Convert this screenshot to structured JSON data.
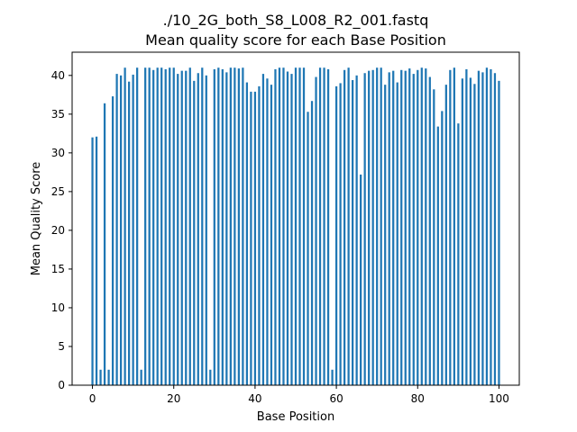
{
  "chart_data": {
    "type": "bar",
    "title_lines": [
      "./10_2G_both_S8_L008_R2_001.fastq",
      "Mean quality score for each Base Position"
    ],
    "xlabel": "Base Position",
    "ylabel": "Mean Quality Score",
    "xlim": [
      -5,
      105
    ],
    "ylim": [
      0,
      43
    ],
    "xticks": [
      0,
      20,
      40,
      60,
      80,
      100
    ],
    "yticks": [
      0,
      5,
      10,
      15,
      20,
      25,
      30,
      35,
      40
    ],
    "grid": false,
    "bar_color": "#1f77b4",
    "x": [
      0,
      1,
      2,
      3,
      4,
      5,
      6,
      7,
      8,
      9,
      10,
      11,
      12,
      13,
      14,
      15,
      16,
      17,
      18,
      19,
      20,
      21,
      22,
      23,
      24,
      25,
      26,
      27,
      28,
      29,
      30,
      31,
      32,
      33,
      34,
      35,
      36,
      37,
      38,
      39,
      40,
      41,
      42,
      43,
      44,
      45,
      46,
      47,
      48,
      49,
      50,
      51,
      52,
      53,
      54,
      55,
      56,
      57,
      58,
      59,
      60,
      61,
      62,
      63,
      64,
      65,
      66,
      67,
      68,
      69,
      70,
      71,
      72,
      73,
      74,
      75,
      76,
      77,
      78,
      79,
      80,
      81,
      82,
      83,
      84,
      85,
      86,
      87,
      88,
      89,
      90,
      91,
      92,
      93,
      94,
      95,
      96,
      97,
      98,
      99,
      100
    ],
    "values": [
      32.0,
      32.1,
      2.0,
      36.4,
      2.0,
      37.3,
      40.2,
      40.0,
      41.0,
      39.2,
      40.1,
      41.0,
      2.0,
      41.0,
      41.0,
      40.7,
      41.0,
      41.0,
      40.8,
      41.0,
      41.0,
      40.2,
      40.6,
      40.6,
      41.0,
      39.3,
      40.3,
      41.0,
      40.0,
      2.0,
      40.8,
      41.0,
      40.8,
      40.4,
      41.0,
      41.0,
      40.9,
      41.0,
      39.1,
      37.9,
      37.9,
      38.6,
      40.2,
      39.6,
      38.8,
      40.8,
      41.0,
      41.0,
      40.5,
      40.2,
      41.0,
      41.0,
      41.0,
      35.3,
      36.7,
      39.8,
      41.0,
      41.0,
      40.8,
      2.0,
      38.6,
      39.0,
      40.7,
      41.0,
      39.4,
      40.0,
      27.2,
      40.3,
      40.6,
      40.7,
      41.0,
      41.0,
      38.8,
      40.4,
      40.6,
      39.1,
      40.7,
      40.6,
      40.9,
      40.2,
      40.7,
      41.0,
      40.9,
      39.8,
      38.2,
      33.4,
      35.4,
      38.8,
      40.7,
      41.0,
      33.8,
      39.6,
      40.8,
      39.7,
      38.9,
      40.6,
      40.4,
      41.0,
      40.8,
      40.3,
      39.3
    ]
  }
}
